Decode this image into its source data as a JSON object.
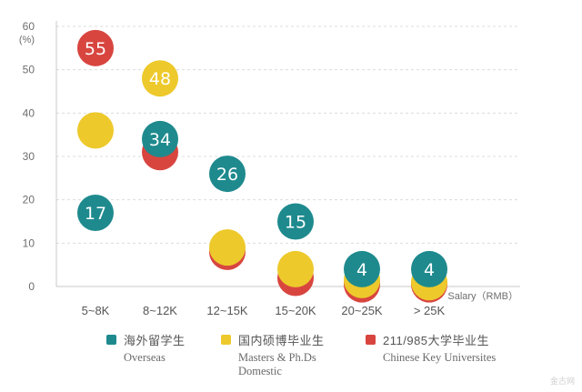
{
  "chart_data": {
    "type": "scatter",
    "y_unit": "(%)",
    "xlabel": "Salary（RMB）",
    "ylim": [
      0,
      60
    ],
    "yticks": [
      0,
      10,
      20,
      30,
      40,
      50,
      60
    ],
    "categories": [
      "5~8K",
      "8~12K",
      "12~15K",
      "15~20K",
      "20~25K",
      "> 25K"
    ],
    "grid": true,
    "series": [
      {
        "key": "key",
        "name_zh": "211/985大学毕业生",
        "name_en": "Chinese Key Universites",
        "color": "#d8453f",
        "values": [
          55,
          31,
          null,
          2,
          0.5,
          0.5
        ],
        "labels": [
          "55",
          "",
          "",
          "",
          "",
          ""
        ]
      },
      {
        "key": "dom",
        "name_zh": "国内硕博毕业生",
        "name_en_1": "Masters & Ph.Ds",
        "name_en_2": "Domestic",
        "color": "#edc92b",
        "values": [
          36,
          48,
          null,
          4,
          1.5,
          1
        ],
        "labels": [
          "",
          "48",
          "",
          "",
          "",
          ""
        ]
      },
      {
        "key": "ovs",
        "name_zh": "海外留学生",
        "name_en": "Overseas",
        "color": "#1e8a8e",
        "values": [
          17,
          34,
          26,
          15,
          4,
          4
        ],
        "labels": [
          "17",
          "34",
          "26",
          "15",
          "4",
          "4"
        ]
      }
    ],
    "extra_points": [
      {
        "key": "key",
        "category": "12~15K",
        "value": 8,
        "color": "#d8453f"
      },
      {
        "key": "dom",
        "category": "12~15K",
        "value": 9,
        "color": "#edc92b"
      }
    ],
    "legend_position": "bottom"
  },
  "watermark": "金古网"
}
